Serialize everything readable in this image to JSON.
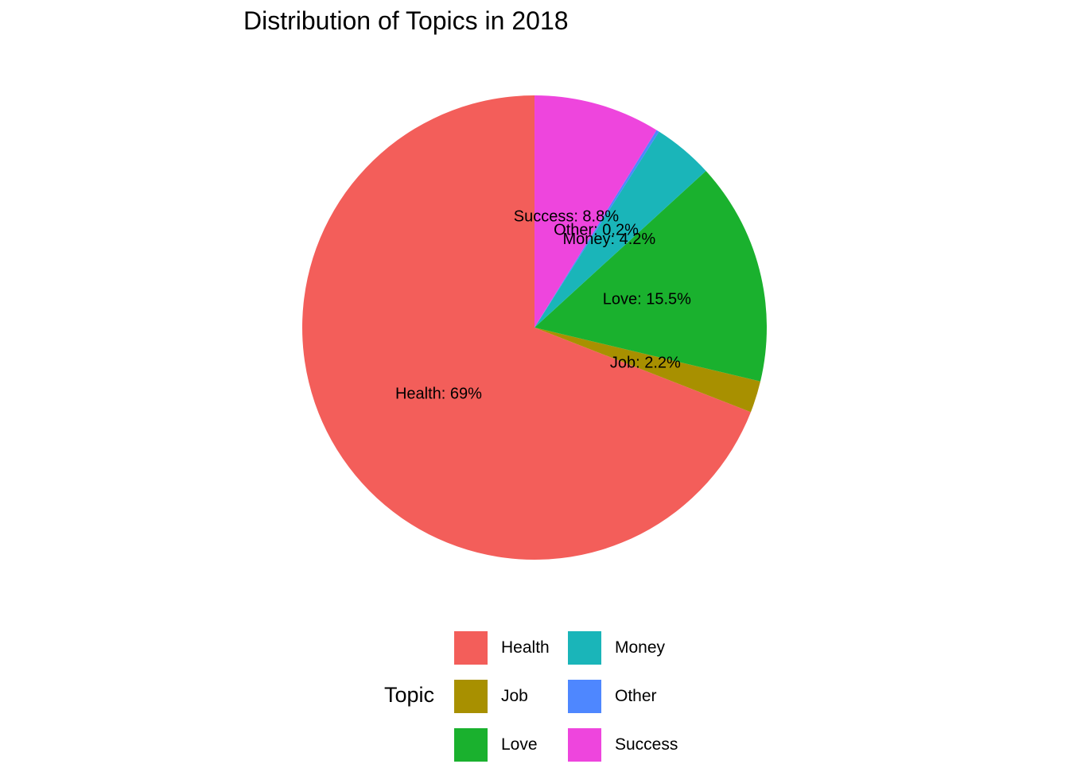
{
  "chart_data": {
    "type": "pie",
    "title": "Distribution of Topics in 2018",
    "legend_title": "Topic",
    "legend_position": "bottom",
    "categories": [
      "Health",
      "Job",
      "Love",
      "Money",
      "Other",
      "Success"
    ],
    "values": [
      69,
      2.2,
      15.5,
      4.2,
      0.2,
      8.8
    ],
    "labels": [
      "Health: 69%",
      "Job: 2.2%",
      "Love: 15.5%",
      "Money: 4.2%",
      "Other: 0.2%",
      "Success: 8.8%"
    ],
    "colors": [
      "#F35E5A",
      "#A89000",
      "#1AB12E",
      "#1AB5B9",
      "#4E87FF",
      "#EE45DD"
    ]
  }
}
